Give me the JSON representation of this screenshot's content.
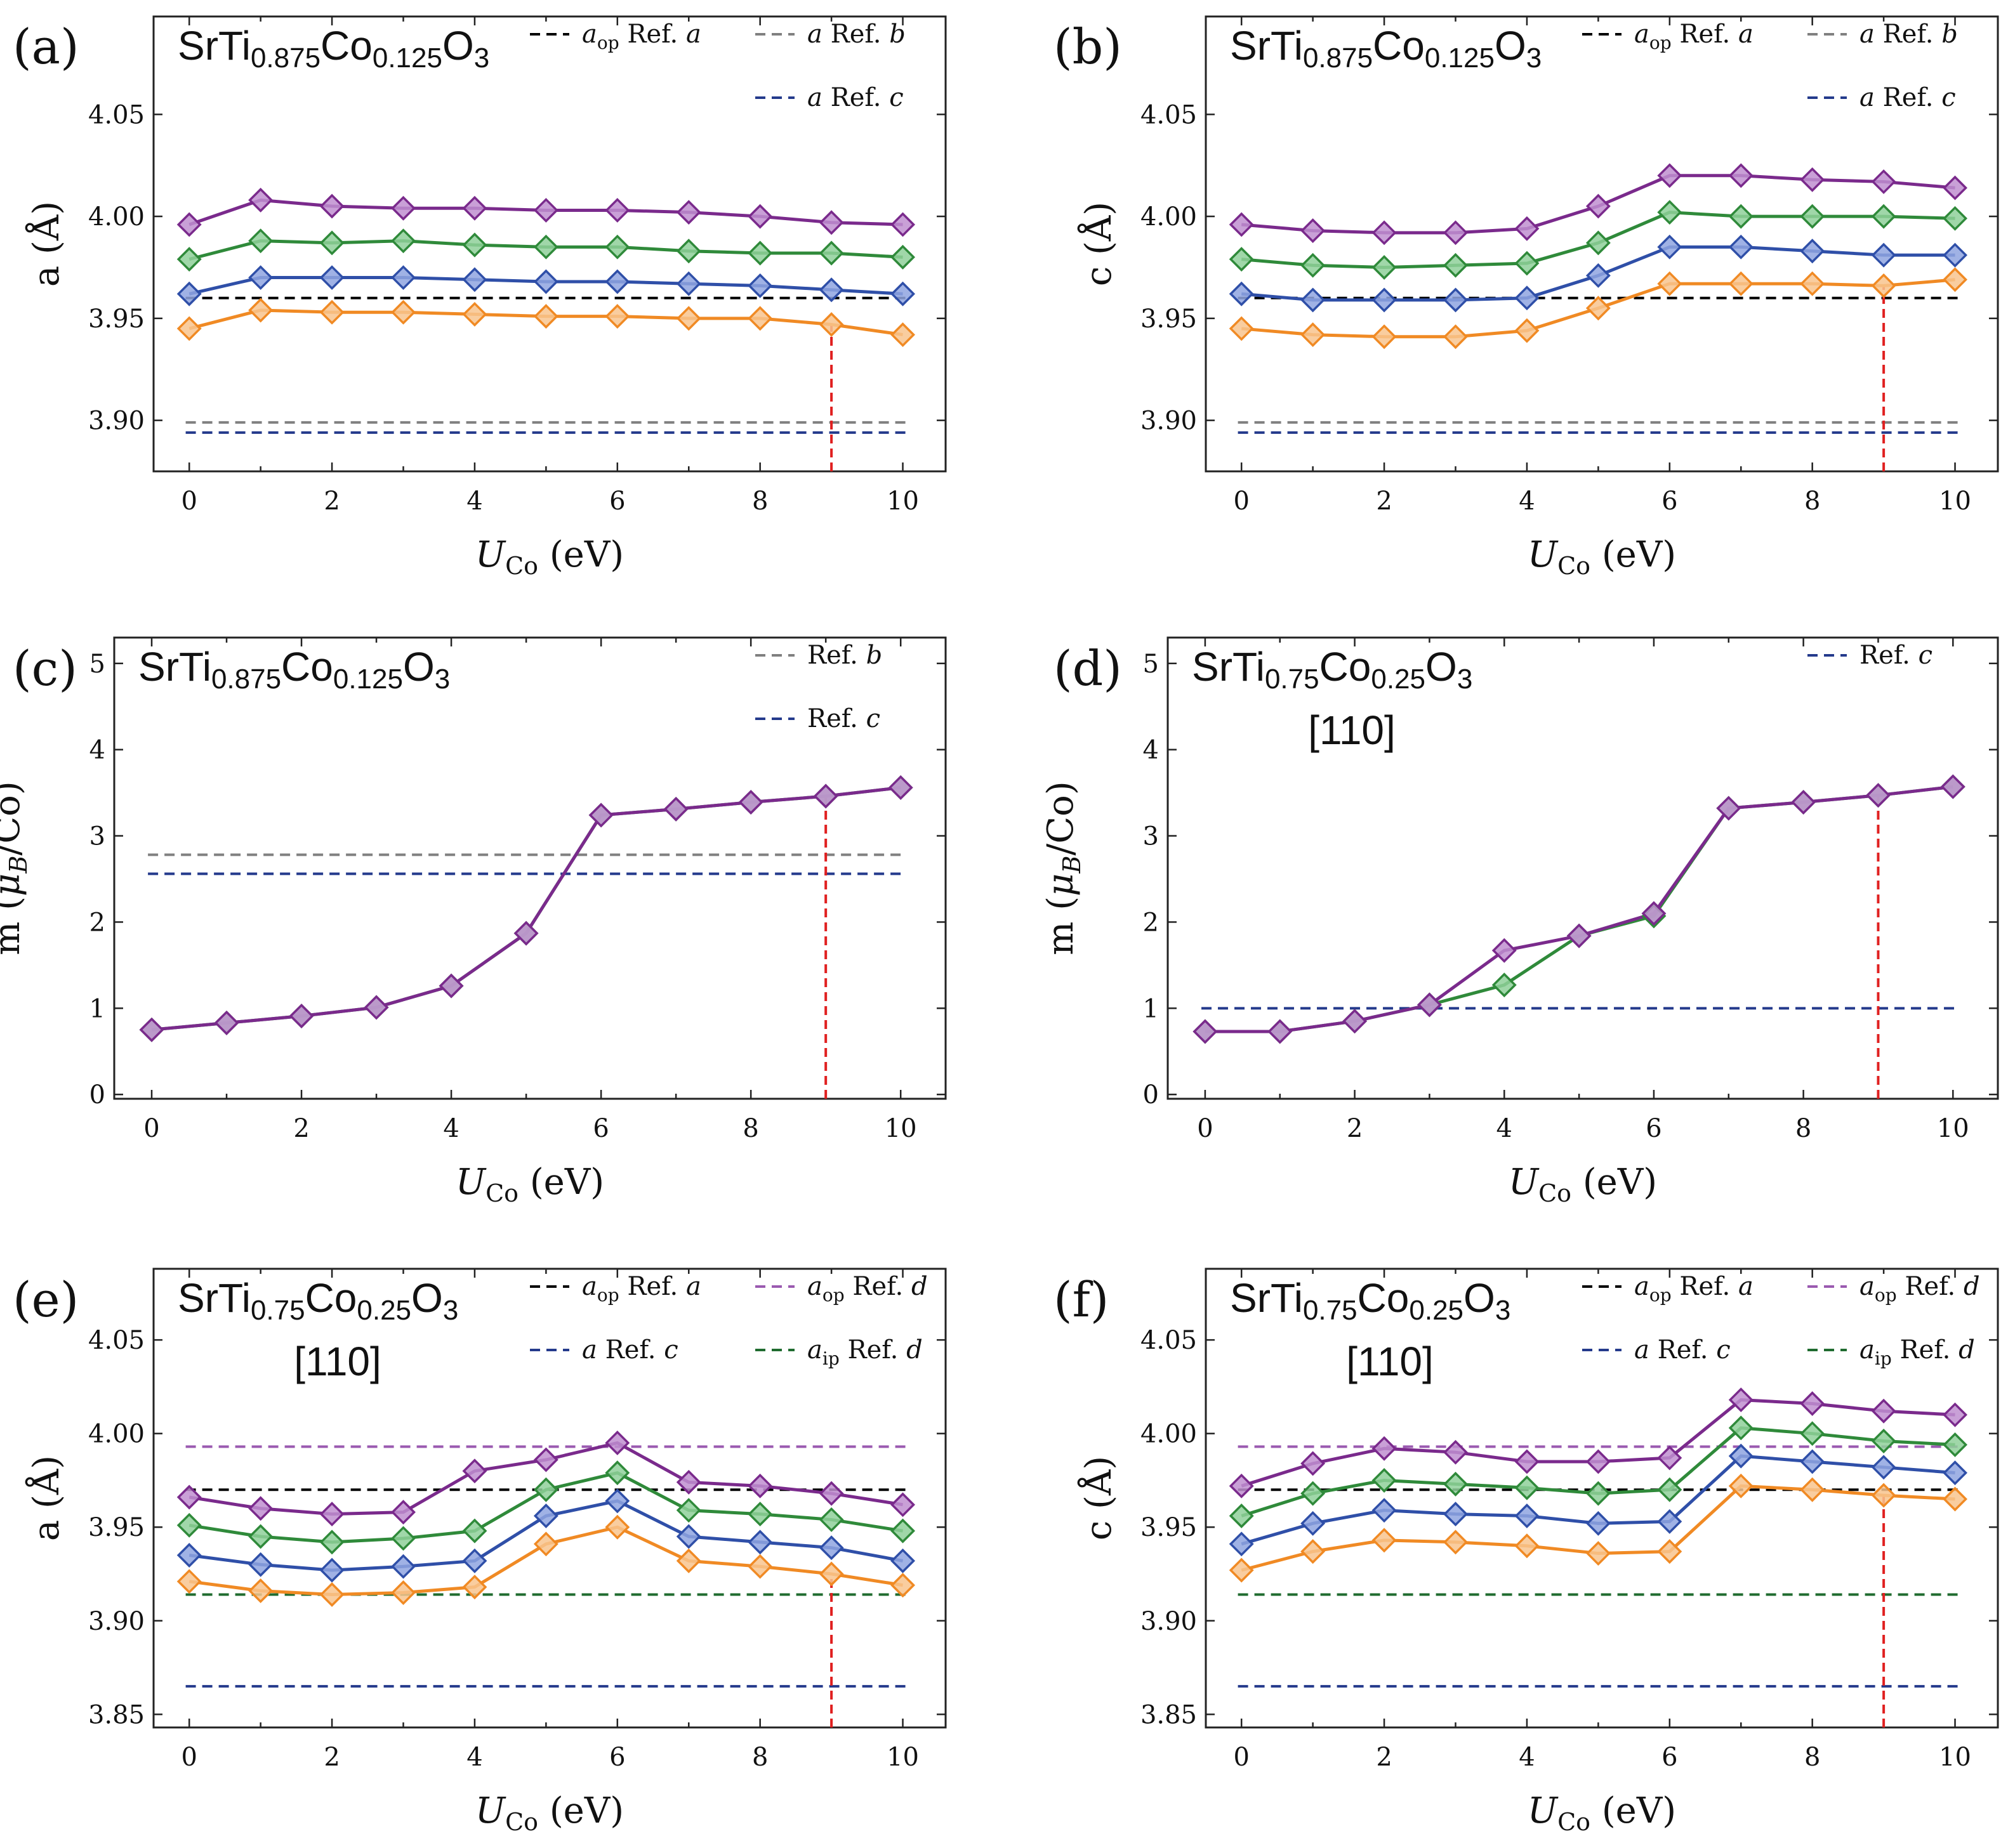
{
  "figure": {
    "x_unit_label": "(eV)",
    "x_var": "U",
    "x_var_sub": "Co"
  },
  "colors": {
    "purple": "#7a2a8c",
    "green": "#2f8a3a",
    "blue": "#2f4fa8",
    "orange": "#f08a24",
    "purple_fill": "#c08fd0",
    "green_fill": "#8fd09a",
    "blue_fill": "#8fa5e0",
    "orange_fill": "#f8c48e",
    "ref_a": "#000000",
    "ref_b": "#808080",
    "ref_c": "#243a8c",
    "ref_d_op": "#9a5ab0",
    "ref_d_ip": "#1f6b2f",
    "marker_line": "#e02020"
  },
  "chart_data": [
    {
      "id": "a",
      "panel_label": "(a)",
      "type": "line",
      "formula": {
        "base": "SrTi",
        "s1": "0.875",
        "mid": "Co",
        "s2": "0.125",
        "end": "O",
        "s3": "3"
      },
      "direction": "",
      "ylabel": "a (Å)",
      "xlim": [
        -0.5,
        10.6
      ],
      "ylim": [
        3.875,
        4.098
      ],
      "xticks": [
        0,
        2,
        4,
        6,
        8,
        10
      ],
      "xtick_labels": [
        "0",
        "2",
        "4",
        "6",
        "8",
        "10"
      ],
      "yticks": [
        3.9,
        3.95,
        4.0,
        4.05
      ],
      "ytick_labels": [
        "3.90",
        "3.95",
        "4.00",
        "4.05"
      ],
      "x": [
        0,
        1,
        2,
        3,
        4,
        5,
        6,
        7,
        8,
        9,
        10
      ],
      "series": [
        {
          "name": "purple",
          "color": "purple",
          "values": [
            3.996,
            4.008,
            4.005,
            4.004,
            4.004,
            4.003,
            4.003,
            4.002,
            4.0,
            3.997,
            3.996
          ]
        },
        {
          "name": "green",
          "color": "green",
          "values": [
            3.979,
            3.988,
            3.987,
            3.988,
            3.986,
            3.985,
            3.985,
            3.983,
            3.982,
            3.982,
            3.98
          ]
        },
        {
          "name": "blue",
          "color": "blue",
          "values": [
            3.962,
            3.97,
            3.97,
            3.97,
            3.969,
            3.968,
            3.968,
            3.967,
            3.966,
            3.964,
            3.962
          ]
        },
        {
          "name": "orange",
          "color": "orange",
          "values": [
            3.945,
            3.954,
            3.953,
            3.953,
            3.952,
            3.951,
            3.951,
            3.95,
            3.95,
            3.947,
            3.942
          ]
        }
      ],
      "ref_lines": [
        {
          "value": 3.96,
          "color": "ref_a"
        },
        {
          "value": 3.899,
          "color": "ref_b"
        },
        {
          "value": 3.894,
          "color": "ref_c"
        }
      ],
      "vline": 9,
      "legend": [
        {
          "sym": "a",
          "sub": "op",
          "ref": "Ref. ",
          "refl": "a",
          "color": "ref_a",
          "row": 0,
          "col": 0
        },
        {
          "sym": "a",
          "sub": "",
          "ref": "Ref. ",
          "refl": "b",
          "color": "ref_b",
          "row": 0,
          "col": 1
        },
        {
          "sym": "a",
          "sub": "",
          "ref": "Ref. ",
          "refl": "c",
          "color": "ref_c",
          "row": 1,
          "col": 1
        }
      ]
    },
    {
      "id": "b",
      "panel_label": "(b)",
      "type": "line",
      "formula": {
        "base": "SrTi",
        "s1": "0.875",
        "mid": "Co",
        "s2": "0.125",
        "end": "O",
        "s3": "3"
      },
      "direction": "",
      "ylabel": "c (Å)",
      "xlim": [
        -0.5,
        10.6
      ],
      "ylim": [
        3.875,
        4.098
      ],
      "xticks": [
        0,
        2,
        4,
        6,
        8,
        10
      ],
      "xtick_labels": [
        "0",
        "2",
        "4",
        "6",
        "8",
        "10"
      ],
      "yticks": [
        3.9,
        3.95,
        4.0,
        4.05
      ],
      "ytick_labels": [
        "3.90",
        "3.95",
        "4.00",
        "4.05"
      ],
      "x": [
        0,
        1,
        2,
        3,
        4,
        5,
        6,
        7,
        8,
        9,
        10
      ],
      "series": [
        {
          "name": "purple",
          "color": "purple",
          "values": [
            3.996,
            3.993,
            3.992,
            3.992,
            3.994,
            4.005,
            4.02,
            4.02,
            4.018,
            4.017,
            4.014
          ]
        },
        {
          "name": "green",
          "color": "green",
          "values": [
            3.979,
            3.976,
            3.975,
            3.976,
            3.977,
            3.987,
            4.002,
            4.0,
            4.0,
            4.0,
            3.999
          ]
        },
        {
          "name": "blue",
          "color": "blue",
          "values": [
            3.962,
            3.959,
            3.959,
            3.959,
            3.96,
            3.971,
            3.985,
            3.985,
            3.983,
            3.981,
            3.981
          ]
        },
        {
          "name": "orange",
          "color": "orange",
          "values": [
            3.945,
            3.942,
            3.941,
            3.941,
            3.944,
            3.955,
            3.967,
            3.967,
            3.967,
            3.966,
            3.969
          ]
        }
      ],
      "ref_lines": [
        {
          "value": 3.96,
          "color": "ref_a"
        },
        {
          "value": 3.899,
          "color": "ref_b"
        },
        {
          "value": 3.894,
          "color": "ref_c"
        }
      ],
      "vline": 9,
      "legend": [
        {
          "sym": "a",
          "sub": "op",
          "ref": "Ref. ",
          "refl": "a",
          "color": "ref_a",
          "row": 0,
          "col": 0
        },
        {
          "sym": "a",
          "sub": "",
          "ref": "Ref. ",
          "refl": "b",
          "color": "ref_b",
          "row": 0,
          "col": 1
        },
        {
          "sym": "a",
          "sub": "",
          "ref": "Ref. ",
          "refl": "c",
          "color": "ref_c",
          "row": 1,
          "col": 1
        }
      ]
    },
    {
      "id": "c",
      "panel_label": "(c)",
      "type": "line",
      "formula": {
        "base": "SrTi",
        "s1": "0.875",
        "mid": "Co",
        "s2": "0.125",
        "end": "O",
        "s3": "3"
      },
      "direction": "",
      "ylabel": "m (μ_B/Co)",
      "xlim": [
        -0.5,
        10.6
      ],
      "ylim": [
        -0.05,
        5.3
      ],
      "xticks": [
        0,
        2,
        4,
        6,
        8,
        10
      ],
      "xtick_labels": [
        "0",
        "2",
        "4",
        "6",
        "8",
        "10"
      ],
      "yticks": [
        0,
        1,
        2,
        3,
        4,
        5
      ],
      "ytick_labels": [
        "0",
        "1",
        "2",
        "3",
        "4",
        "5"
      ],
      "x": [
        0,
        1,
        2,
        3,
        4,
        5,
        6,
        7,
        8,
        9,
        10
      ],
      "series": [
        {
          "name": "green",
          "color": "green",
          "values": [
            0.75,
            0.83,
            0.91,
            1.01,
            1.26,
            1.87,
            3.24,
            3.31,
            3.39,
            3.46,
            3.56
          ]
        },
        {
          "name": "purple",
          "color": "purple",
          "values": [
            0.75,
            0.83,
            0.91,
            1.01,
            1.26,
            1.87,
            3.24,
            3.31,
            3.39,
            3.46,
            3.56
          ]
        }
      ],
      "ref_lines": [
        {
          "value": 2.78,
          "color": "ref_b"
        },
        {
          "value": 2.56,
          "color": "ref_c"
        }
      ],
      "vline": 9,
      "legend": [
        {
          "sym": "",
          "sub": "",
          "ref": "Ref. ",
          "refl": "b",
          "color": "ref_b",
          "row": 0,
          "col": 1
        },
        {
          "sym": "",
          "sub": "",
          "ref": "Ref. ",
          "refl": "c",
          "color": "ref_c",
          "row": 1,
          "col": 1
        }
      ]
    },
    {
      "id": "d",
      "panel_label": "(d)",
      "type": "line",
      "formula": {
        "base": "SrTi",
        "s1": "0.75",
        "mid": "Co",
        "s2": "0.25",
        "end": "O",
        "s3": "3"
      },
      "direction": "[110]",
      "ylabel": "m (μ_B/Co)",
      "xlim": [
        -0.5,
        10.6
      ],
      "ylim": [
        -0.05,
        5.3
      ],
      "xticks": [
        0,
        2,
        4,
        6,
        8,
        10
      ],
      "xtick_labels": [
        "0",
        "2",
        "4",
        "6",
        "8",
        "10"
      ],
      "yticks": [
        0,
        1,
        2,
        3,
        4,
        5
      ],
      "ytick_labels": [
        "0",
        "1",
        "2",
        "3",
        "4",
        "5"
      ],
      "x": [
        0,
        1,
        2,
        3,
        4,
        5,
        6,
        7,
        8,
        9,
        10
      ],
      "series": [
        {
          "name": "green",
          "color": "green",
          "values": [
            0.73,
            0.73,
            0.85,
            1.04,
            1.27,
            1.84,
            2.07,
            3.32,
            3.39,
            3.47,
            3.57
          ]
        },
        {
          "name": "purple",
          "color": "purple",
          "values": [
            0.73,
            0.73,
            0.85,
            1.04,
            1.67,
            1.84,
            2.1,
            3.32,
            3.39,
            3.47,
            3.57
          ]
        }
      ],
      "ref_lines": [
        {
          "value": 1.0,
          "color": "ref_c"
        }
      ],
      "vline": 9,
      "legend": [
        {
          "sym": "",
          "sub": "",
          "ref": "Ref. ",
          "refl": "c",
          "color": "ref_c",
          "row": 0,
          "col": 1
        }
      ]
    },
    {
      "id": "e",
      "panel_label": "(e)",
      "type": "line",
      "formula": {
        "base": "SrTi",
        "s1": "0.75",
        "mid": "Co",
        "s2": "0.25",
        "end": "O",
        "s3": "3"
      },
      "direction": "[110]",
      "ylabel": "a (Å)",
      "xlim": [
        -0.5,
        10.6
      ],
      "ylim": [
        3.843,
        4.088
      ],
      "xticks": [
        0,
        2,
        4,
        6,
        8,
        10
      ],
      "xtick_labels": [
        "0",
        "2",
        "4",
        "6",
        "8",
        "10"
      ],
      "yticks": [
        3.85,
        3.9,
        3.95,
        4.0,
        4.05
      ],
      "ytick_labels": [
        "3.85",
        "3.90",
        "3.95",
        "4.00",
        "4.05"
      ],
      "x": [
        0,
        1,
        2,
        3,
        4,
        5,
        6,
        7,
        8,
        9,
        10
      ],
      "series": [
        {
          "name": "purple",
          "color": "purple",
          "values": [
            3.966,
            3.96,
            3.957,
            3.958,
            3.98,
            3.986,
            3.995,
            3.974,
            3.972,
            3.968,
            3.962
          ]
        },
        {
          "name": "green",
          "color": "green",
          "values": [
            3.951,
            3.945,
            3.942,
            3.944,
            3.948,
            3.97,
            3.979,
            3.959,
            3.957,
            3.954,
            3.948
          ]
        },
        {
          "name": "blue",
          "color": "blue",
          "values": [
            3.935,
            3.93,
            3.927,
            3.929,
            3.932,
            3.956,
            3.964,
            3.945,
            3.942,
            3.939,
            3.932
          ]
        },
        {
          "name": "orange",
          "color": "orange",
          "values": [
            3.921,
            3.916,
            3.914,
            3.915,
            3.918,
            3.941,
            3.95,
            3.932,
            3.929,
            3.925,
            3.919
          ]
        }
      ],
      "ref_lines": [
        {
          "value": 3.993,
          "color": "ref_d_op"
        },
        {
          "value": 3.97,
          "color": "ref_a"
        },
        {
          "value": 3.914,
          "color": "ref_d_ip"
        },
        {
          "value": 3.865,
          "color": "ref_c"
        }
      ],
      "vline": 9,
      "legend": [
        {
          "sym": "a",
          "sub": "op",
          "ref": "Ref. ",
          "refl": "a",
          "color": "ref_a",
          "row": 0,
          "col": 0
        },
        {
          "sym": "a",
          "sub": "op",
          "ref": "Ref. ",
          "refl": "d",
          "color": "ref_d_op",
          "row": 0,
          "col": 1
        },
        {
          "sym": "a",
          "sub": "",
          "ref": "Ref. ",
          "refl": "c",
          "color": "ref_c",
          "row": 1,
          "col": 0
        },
        {
          "sym": "a",
          "sub": "ip",
          "ref": "Ref. ",
          "refl": "d",
          "color": "ref_d_ip",
          "row": 1,
          "col": 1
        }
      ]
    },
    {
      "id": "f",
      "panel_label": "(f)",
      "type": "line",
      "formula": {
        "base": "SrTi",
        "s1": "0.75",
        "mid": "Co",
        "s2": "0.25",
        "end": "O",
        "s3": "3"
      },
      "direction": "[110]",
      "ylabel": "c (Å)",
      "xlim": [
        -0.5,
        10.6
      ],
      "ylim": [
        3.843,
        4.088
      ],
      "xticks": [
        0,
        2,
        4,
        6,
        8,
        10
      ],
      "xtick_labels": [
        "0",
        "2",
        "4",
        "6",
        "8",
        "10"
      ],
      "yticks": [
        3.85,
        3.9,
        3.95,
        4.0,
        4.05
      ],
      "ytick_labels": [
        "3.85",
        "3.90",
        "3.95",
        "4.00",
        "4.05"
      ],
      "x": [
        0,
        1,
        2,
        3,
        4,
        5,
        6,
        7,
        8,
        9,
        10
      ],
      "series": [
        {
          "name": "purple",
          "color": "purple",
          "values": [
            3.972,
            3.984,
            3.992,
            3.99,
            3.985,
            3.985,
            3.987,
            4.018,
            4.016,
            4.012,
            4.01
          ]
        },
        {
          "name": "green",
          "color": "green",
          "values": [
            3.956,
            3.968,
            3.975,
            3.973,
            3.971,
            3.968,
            3.97,
            4.003,
            4.0,
            3.996,
            3.994
          ]
        },
        {
          "name": "blue",
          "color": "blue",
          "values": [
            3.941,
            3.952,
            3.959,
            3.957,
            3.956,
            3.952,
            3.953,
            3.988,
            3.985,
            3.982,
            3.979
          ]
        },
        {
          "name": "orange",
          "color": "orange",
          "values": [
            3.927,
            3.937,
            3.943,
            3.942,
            3.94,
            3.936,
            3.937,
            3.972,
            3.97,
            3.967,
            3.965
          ]
        }
      ],
      "ref_lines": [
        {
          "value": 3.993,
          "color": "ref_d_op"
        },
        {
          "value": 3.97,
          "color": "ref_a"
        },
        {
          "value": 3.914,
          "color": "ref_d_ip"
        },
        {
          "value": 3.865,
          "color": "ref_c"
        }
      ],
      "vline": 9,
      "legend": [
        {
          "sym": "a",
          "sub": "op",
          "ref": "Ref. ",
          "refl": "a",
          "color": "ref_a",
          "row": 0,
          "col": 0
        },
        {
          "sym": "a",
          "sub": "op",
          "ref": "Ref. ",
          "refl": "d",
          "color": "ref_d_op",
          "row": 0,
          "col": 1
        },
        {
          "sym": "a",
          "sub": "",
          "ref": "Ref. ",
          "refl": "c",
          "color": "ref_c",
          "row": 1,
          "col": 0
        },
        {
          "sym": "a",
          "sub": "ip",
          "ref": "Ref. ",
          "refl": "d",
          "color": "ref_d_ip",
          "row": 1,
          "col": 1
        }
      ]
    }
  ]
}
